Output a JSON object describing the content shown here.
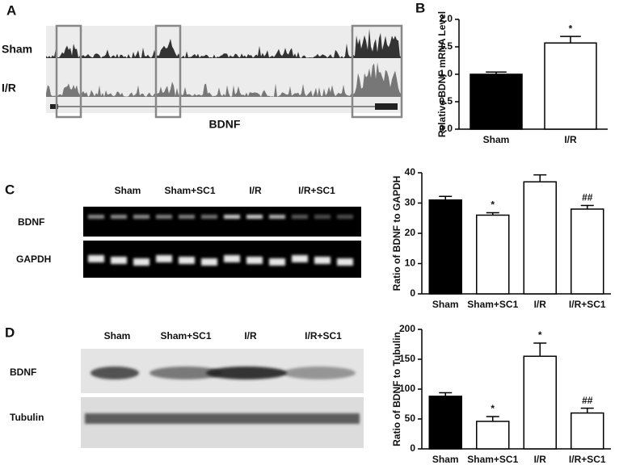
{
  "panel_labels": [
    "A",
    "B",
    "C",
    "D"
  ],
  "track": {
    "rows": [
      "Sham",
      "I/R"
    ],
    "gene": "BDNF"
  },
  "gel": {
    "lanes": [
      "Sham",
      "Sham+SC1",
      "I/R",
      "I/R+SC1"
    ],
    "rows": [
      "BDNF",
      "GAPDH"
    ]
  },
  "blot": {
    "lanes": [
      "Sham",
      "Sham+SC1",
      "I/R",
      "I/R+SC1"
    ],
    "rows": [
      "BDNF",
      "Tubulin"
    ]
  },
  "chart_data": [
    {
      "type": "bar",
      "ylabel": "Relative BDNF mRNA Level",
      "categories": [
        "Sham",
        "I/R"
      ],
      "values": [
        1.0,
        1.57
      ],
      "errors": [
        0.04,
        0.12
      ],
      "marks": [
        null,
        "*"
      ],
      "colors": [
        "#000000",
        "#ffffff"
      ],
      "ylim": [
        0,
        2.0
      ],
      "yticks": [
        {
          "value": 0,
          "label": "0.0"
        },
        {
          "value": 0.5,
          "label": "0.5"
        },
        {
          "value": 1.0,
          "label": "1.0"
        },
        {
          "value": 1.5,
          "label": "1.5"
        },
        {
          "value": 2.0,
          "label": "2.0"
        }
      ]
    },
    {
      "type": "bar",
      "ylabel": "Ratio of BDNF to GAPDH",
      "categories": [
        "Sham",
        "Sham+SC1",
        "I/R",
        "I/R+SC1"
      ],
      "values": [
        31,
        26,
        37,
        28
      ],
      "errors": [
        1.2,
        0.8,
        2.3,
        1.2
      ],
      "marks": [
        null,
        "*",
        null,
        "##"
      ],
      "colors": [
        "#000000",
        "#ffffff",
        "#ffffff",
        "#ffffff"
      ],
      "ylim": [
        0,
        40
      ],
      "yticks": [
        0,
        10,
        20,
        30,
        40
      ]
    },
    {
      "type": "bar",
      "ylabel": "Ratio of BDNF to Tubulin",
      "categories": [
        "Sham",
        "Sham+SC1",
        "I/R",
        "I/R+SC1"
      ],
      "values": [
        88,
        46,
        155,
        60
      ],
      "errors": [
        6,
        8,
        22,
        8
      ],
      "marks": [
        null,
        "*",
        "*",
        "##"
      ],
      "colors": [
        "#000000",
        "#ffffff",
        "#ffffff",
        "#ffffff"
      ],
      "ylim": [
        0,
        200
      ],
      "yticks": [
        0,
        50,
        100,
        150,
        200
      ]
    }
  ]
}
